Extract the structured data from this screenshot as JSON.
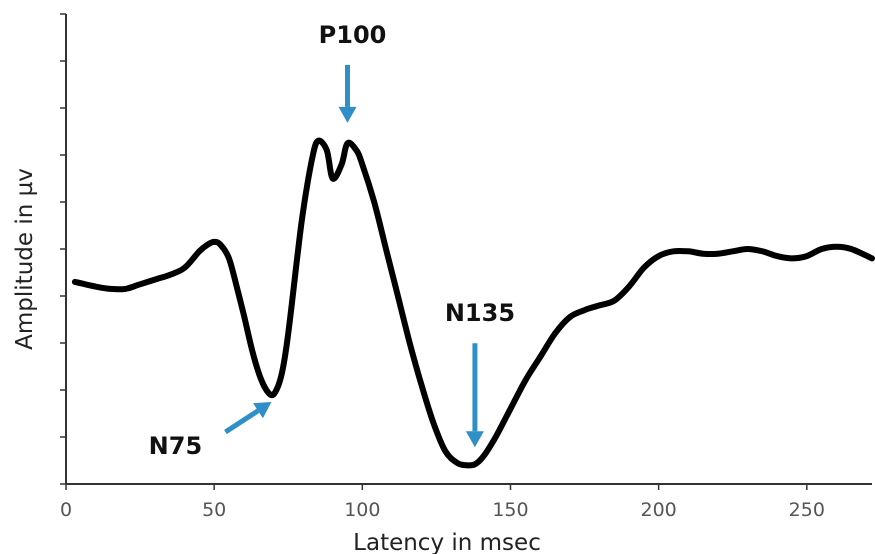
{
  "chart_data": {
    "type": "line",
    "title": "",
    "xlabel": "Latency in msec",
    "ylabel": "Amplitude in µv",
    "xlim": [
      0,
      272
    ],
    "ylim": [
      0,
      10
    ],
    "x_ticks": [
      0,
      50,
      100,
      150,
      200,
      250
    ],
    "y_tick_count": 10,
    "grid": false,
    "legend": "none",
    "colors": {
      "line": "#000000",
      "arrows": "#2f8fc6",
      "axis": "#333333"
    },
    "series": [
      {
        "x": [
          3,
          10,
          15,
          20,
          25,
          30,
          35,
          40,
          45,
          48,
          50,
          52,
          55,
          58,
          60,
          63,
          66,
          69,
          71,
          73,
          75,
          78,
          80,
          83,
          85,
          88,
          90,
          93,
          95,
          98,
          100,
          104,
          108,
          112,
          116,
          120,
          124,
          128,
          132,
          135,
          138,
          141,
          145,
          150,
          155,
          160,
          165,
          170,
          175,
          180,
          185,
          190,
          195,
          200,
          205,
          210,
          215,
          220,
          225,
          230,
          235,
          240,
          245,
          250,
          255,
          260,
          265,
          272
        ],
        "y": [
          4.3,
          4.2,
          4.15,
          4.15,
          4.25,
          4.35,
          4.45,
          4.6,
          4.95,
          5.1,
          5.15,
          5.1,
          4.8,
          4.1,
          3.6,
          2.8,
          2.2,
          1.9,
          2.0,
          2.4,
          3.2,
          4.8,
          5.8,
          6.9,
          7.3,
          7.1,
          6.5,
          6.8,
          7.25,
          7.1,
          6.8,
          6.0,
          5.0,
          4.0,
          3.0,
          2.1,
          1.3,
          0.7,
          0.45,
          0.4,
          0.42,
          0.6,
          1.0,
          1.6,
          2.2,
          2.7,
          3.2,
          3.55,
          3.7,
          3.8,
          3.9,
          4.2,
          4.6,
          4.85,
          4.95,
          4.95,
          4.9,
          4.9,
          4.95,
          5.0,
          4.95,
          4.85,
          4.8,
          4.85,
          5.0,
          5.05,
          5.0,
          4.8
        ]
      }
    ],
    "annotations": [
      {
        "text": "P100",
        "x": 95,
        "y": 7.3,
        "arrow": "down"
      },
      {
        "text": "N75",
        "x": 70,
        "y": 2.0,
        "arrow": "up-right"
      },
      {
        "text": "N135",
        "x": 138,
        "y": 0.4,
        "arrow": "down"
      }
    ]
  }
}
